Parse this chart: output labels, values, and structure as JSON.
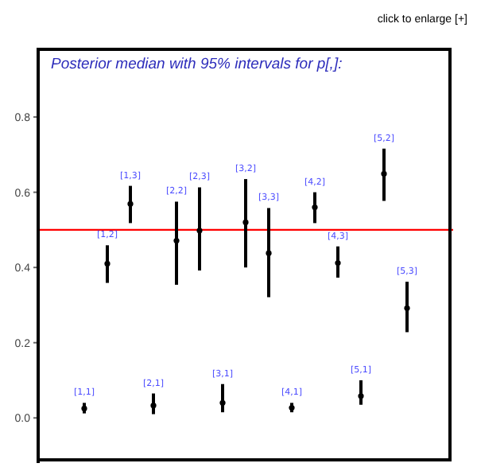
{
  "chart_data": {
    "type": "scatter",
    "title": "Posterior median with 95% intervals for p[,]:",
    "annotations": [
      "click to enlarge [+]"
    ],
    "categories": [
      "[1,1]",
      "[1,2]",
      "[1,3]",
      "[2,1]",
      "[2,2]",
      "[2,3]",
      "[3,1]",
      "[3,2]",
      "[3,3]",
      "[4,1]",
      "[4,2]",
      "[4,3]",
      "[5,1]",
      "[5,2]",
      "[5,3]"
    ],
    "values": [
      0.025,
      0.41,
      0.569,
      0.033,
      0.471,
      0.498,
      0.04,
      0.52,
      0.438,
      0.027,
      0.56,
      0.412,
      0.058,
      0.649,
      0.292
    ],
    "errors": [
      [
        0.012,
        0.04
      ],
      [
        0.359,
        0.459
      ],
      [
        0.518,
        0.617
      ],
      [
        0.01,
        0.065
      ],
      [
        0.354,
        0.575
      ],
      [
        0.392,
        0.613
      ],
      [
        0.015,
        0.09
      ],
      [
        0.4,
        0.635
      ],
      [
        0.321,
        0.558
      ],
      [
        0.015,
        0.04
      ],
      [
        0.518,
        0.6
      ],
      [
        0.373,
        0.456
      ],
      [
        0.035,
        0.1
      ],
      [
        0.577,
        0.716
      ],
      [
        0.228,
        0.362
      ]
    ],
    "color": "#000000",
    "marker": "circle",
    "ylim": [
      -0.12,
      0.98
    ],
    "yticks": [
      {
        "value": 0,
        "label": "0.0"
      },
      {
        "value": 0.2,
        "label": "0.2"
      },
      {
        "value": 0.4,
        "label": "0.4"
      },
      {
        "value": 0.6,
        "label": "0.6"
      },
      {
        "value": 0.8,
        "label": "0.8"
      }
    ],
    "ref_lines": [
      {
        "axis": "y",
        "value": 0.5,
        "color": "#ff0000"
      }
    ],
    "tick_labels": "y",
    "grid": false
  }
}
